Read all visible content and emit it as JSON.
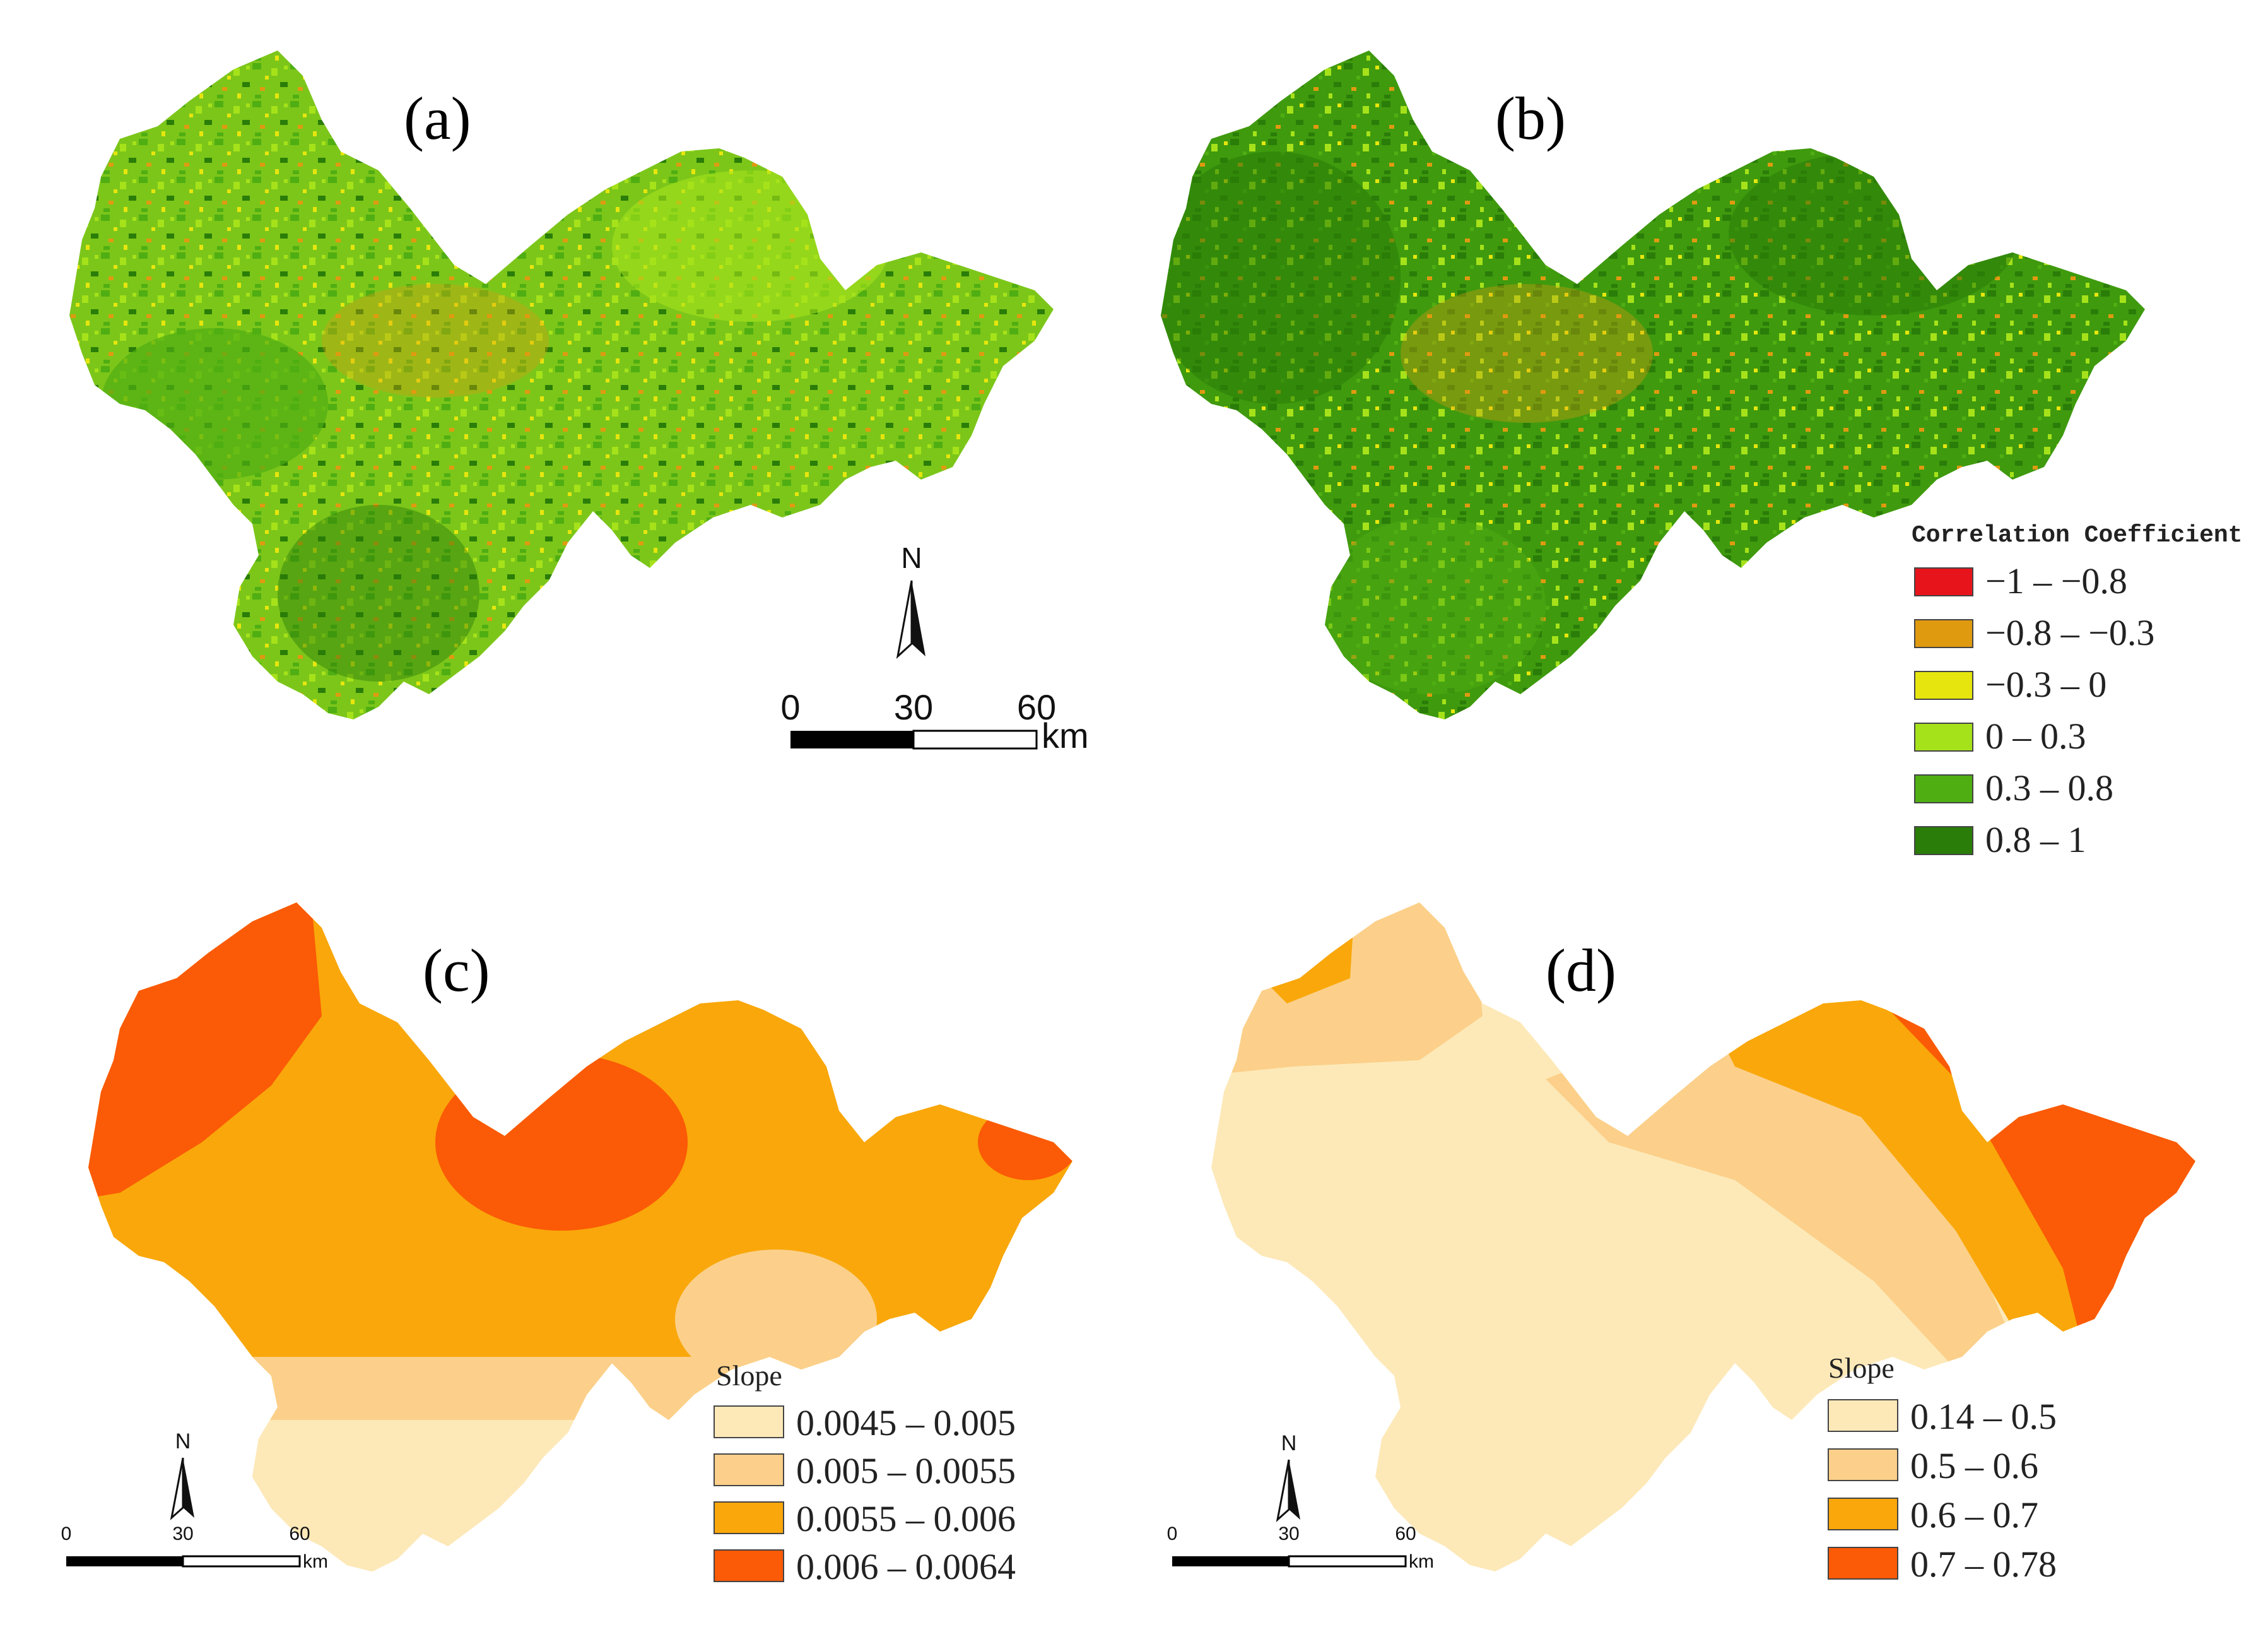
{
  "panels": [
    {
      "id": "a",
      "label": "(a)"
    },
    {
      "id": "b",
      "label": "(b)"
    },
    {
      "id": "c",
      "label": "(c)"
    },
    {
      "id": "d",
      "label": "(d)"
    }
  ],
  "legend_correlation": {
    "title": "Correlation Coefficient",
    "items": [
      {
        "label": "−1 – −0.8",
        "color": "#e8141c"
      },
      {
        "label": "−0.8 – −0.3",
        "color": "#e09a10"
      },
      {
        "label": "−0.3 – 0",
        "color": "#e6e60e"
      },
      {
        "label": "0 – 0.3",
        "color": "#a6e21a"
      },
      {
        "label": "0.3 – 0.8",
        "color": "#4fae12"
      },
      {
        "label": "0.8 – 1",
        "color": "#2a7d08"
      }
    ]
  },
  "legend_slope_c": {
    "title": "Slope",
    "items": [
      {
        "label": "0.0045 – 0.005",
        "color": "#fde9b8"
      },
      {
        "label": "0.005 – 0.0055",
        "color": "#fcd08a"
      },
      {
        "label": "0.0055 – 0.006",
        "color": "#f9a70a"
      },
      {
        "label": "0.006 – 0.0064",
        "color": "#fb5a06"
      }
    ]
  },
  "legend_slope_d": {
    "title": "Slope",
    "items": [
      {
        "label": "0.14 – 0.5",
        "color": "#fde9b8"
      },
      {
        "label": "0.5 – 0.6",
        "color": "#fcd08a"
      },
      {
        "label": "0.6 – 0.7",
        "color": "#f9a70a"
      },
      {
        "label": "0.7 – 0.78",
        "color": "#fb5a06"
      }
    ]
  },
  "scale_bar": {
    "ticks": [
      "0",
      "30",
      "60"
    ],
    "unit": "km"
  },
  "north_arrow": {
    "label": "N"
  }
}
